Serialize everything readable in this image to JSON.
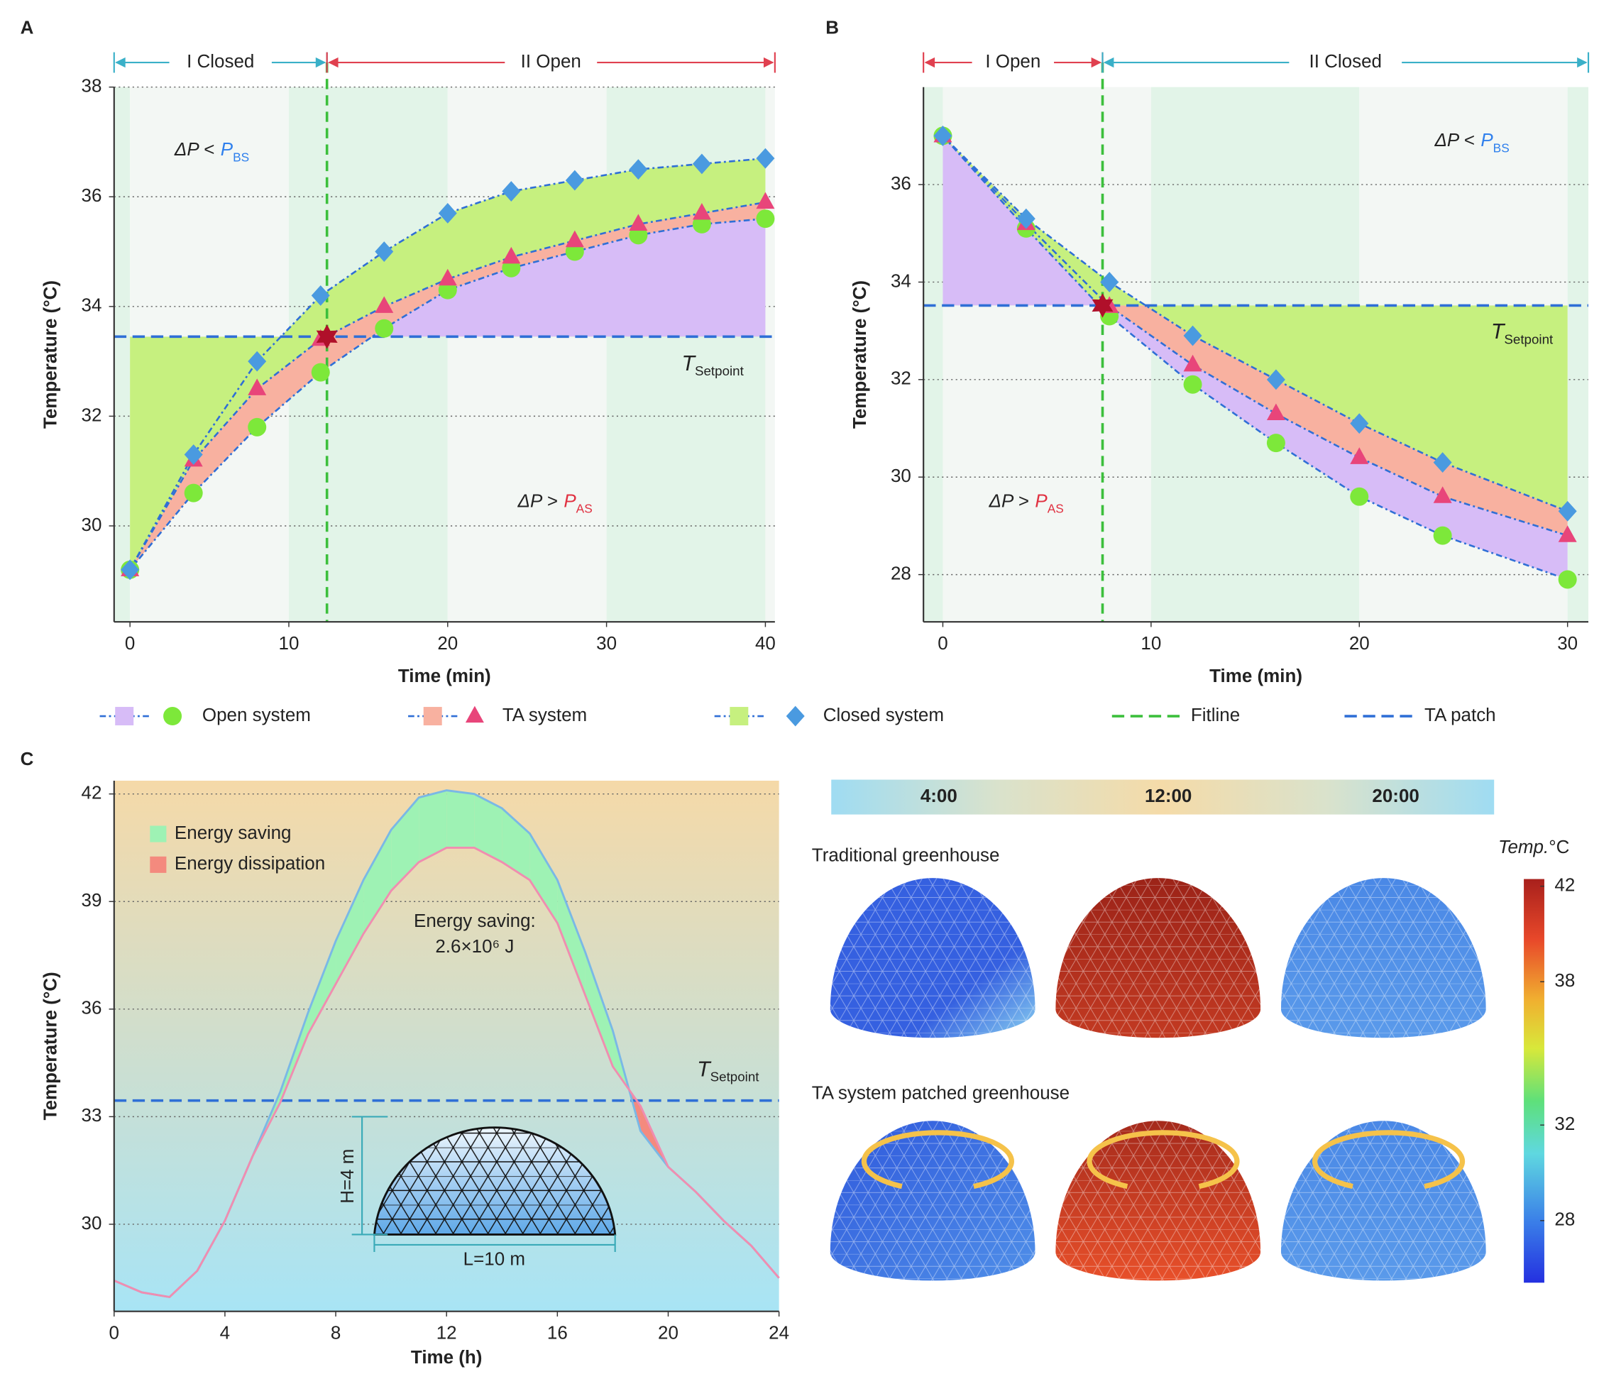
{
  "panels": [
    "A",
    "B",
    "C"
  ],
  "chart_data": [
    {
      "type": "line",
      "x_label": "Time (min)",
      "y_label": "Temperature (°C)",
      "x": [
        0,
        4,
        8,
        12,
        16,
        20,
        24,
        28,
        32,
        36,
        40
      ],
      "series": [
        {
          "name": "Open system",
          "color": "#7de83a",
          "marker": "circle",
          "values": [
            29.2,
            30.6,
            31.8,
            32.8,
            33.6,
            34.3,
            34.7,
            35.0,
            35.3,
            35.5,
            35.6
          ]
        },
        {
          "name": "TA system",
          "color": "#e8457a",
          "marker": "triangle",
          "values": [
            29.2,
            31.2,
            32.5,
            33.4,
            34.0,
            34.5,
            34.9,
            35.2,
            35.5,
            35.7,
            35.9
          ]
        },
        {
          "name": "Closed system",
          "color": "#4a9ae0",
          "marker": "diamond",
          "values": [
            29.2,
            31.3,
            33.0,
            34.2,
            35.0,
            35.7,
            36.1,
            36.3,
            36.5,
            36.6,
            36.7
          ]
        }
      ],
      "line_color": "#2f6fd6",
      "xlim": [
        -1,
        40.6
      ],
      "ylim": [
        28.25,
        38
      ],
      "xticks": [
        0,
        10,
        20,
        30,
        40
      ],
      "yticks": [
        30,
        32,
        34,
        36,
        38
      ],
      "grid": true,
      "bands": [
        "#e2f4e8",
        "#f3f7f4"
      ],
      "setpoint": 33.45,
      "setpoint_color": "#2f6fd6",
      "setpoint_label": [
        "T",
        "Setpoint"
      ],
      "fitline_x": 12.4,
      "fitline_color": "#3cbf3c",
      "crossing": [
        12.4,
        33.45
      ],
      "phases": [
        {
          "label": "I Closed",
          "color": "#3ab0c8",
          "range": [
            -1,
            12.4
          ]
        },
        {
          "label": "II Open",
          "color": "#e0404f",
          "range": [
            12.4,
            40.6
          ]
        }
      ],
      "annotations": [
        {
          "parts": [
            "ΔP <",
            "P",
            "BS"
          ],
          "color": "#2f80ed"
        },
        {
          "parts": [
            "ΔP >",
            "P",
            "AS"
          ],
          "color": "#e03040"
        }
      ],
      "fills": [
        {
          "a": 2,
          "b": 1,
          "color": "#c6f07f"
        },
        {
          "a": 1,
          "b": 0,
          "color": "#f8b1a0"
        },
        {
          "a": 0,
          "b": "setpoint",
          "side": "above",
          "color": "#d7bcf7"
        },
        {
          "a": 2,
          "b": "setpoint",
          "side": "below",
          "color": "#c6f07f"
        }
      ]
    },
    {
      "type": "line",
      "x_label": "Time (min)",
      "y_label": "Temperature (°C)",
      "x": [
        0,
        4,
        8,
        12,
        16,
        20,
        24,
        30
      ],
      "series": [
        {
          "name": "Open system",
          "color": "#7de83a",
          "marker": "circle",
          "values": [
            37.0,
            35.1,
            33.3,
            31.9,
            30.7,
            29.6,
            28.8,
            27.9
          ]
        },
        {
          "name": "TA system",
          "color": "#e8457a",
          "marker": "triangle",
          "values": [
            37.0,
            35.2,
            33.5,
            32.3,
            31.3,
            30.4,
            29.6,
            28.8
          ]
        },
        {
          "name": "Closed system",
          "color": "#4a9ae0",
          "marker": "diamond",
          "values": [
            37.0,
            35.3,
            34.0,
            32.9,
            32.0,
            31.1,
            30.3,
            29.3
          ]
        }
      ],
      "line_color": "#2f6fd6",
      "xlim": [
        -0.93,
        31
      ],
      "ylim": [
        27.03,
        38
      ],
      "xticks": [
        0,
        10,
        20,
        30
      ],
      "yticks": [
        28,
        30,
        32,
        34,
        36
      ],
      "grid": true,
      "bands": [
        "#e2f4e8",
        "#f3f7f4"
      ],
      "setpoint": 33.52,
      "setpoint_color": "#2f6fd6",
      "setpoint_label": [
        "T",
        "Setpoint"
      ],
      "fitline_x": 7.67,
      "fitline_color": "#3cbf3c",
      "crossing": [
        7.67,
        33.52
      ],
      "phases": [
        {
          "label": "I Open",
          "color": "#e0404f",
          "range": [
            -0.93,
            7.67
          ]
        },
        {
          "label": "II Closed",
          "color": "#3ab0c8",
          "range": [
            7.67,
            31
          ]
        }
      ],
      "annotations": [
        {
          "parts": [
            "ΔP <",
            "P",
            "BS"
          ],
          "color": "#2f80ed"
        },
        {
          "parts": [
            "ΔP >",
            "P",
            "AS"
          ],
          "color": "#e03040"
        }
      ],
      "fills": [
        {
          "a": "setpoint",
          "b": 2,
          "side": "below",
          "color": "#c6f07f"
        },
        {
          "a": 2,
          "b": 1,
          "side": "below",
          "color": "#f8b1a0"
        },
        {
          "a": 1,
          "b": 0,
          "side": "below",
          "color": "#d7bcf7"
        },
        {
          "a": 0,
          "b": "setpoint",
          "side": "above",
          "color": "#d7bcf7"
        },
        {
          "a": 2,
          "b": 0,
          "side": "above",
          "color": "#c6f07f"
        }
      ]
    },
    {
      "type": "line",
      "x_label": "Time (h)",
      "y_label": "Temperature (°C)",
      "x": [
        0,
        1,
        2,
        3,
        4,
        5,
        6,
        7,
        8,
        9,
        10,
        11,
        12,
        13,
        14,
        15,
        16,
        17,
        18,
        19,
        20,
        21,
        22,
        23,
        24
      ],
      "series": [
        {
          "color": "#7ab8e6",
          "values": [
            28.43,
            28.1,
            27.97,
            28.7,
            30.1,
            31.9,
            33.7,
            35.9,
            37.9,
            39.6,
            41.0,
            41.9,
            42.1,
            42.0,
            41.6,
            40.9,
            39.6,
            37.6,
            35.4,
            32.6,
            31.6,
            30.9,
            30.1,
            29.4,
            28.5
          ]
        },
        {
          "color": "#f08db0",
          "values": [
            28.43,
            28.1,
            27.97,
            28.7,
            30.1,
            31.9,
            33.4,
            35.3,
            36.7,
            38.1,
            39.3,
            40.1,
            40.5,
            40.5,
            40.1,
            39.6,
            38.4,
            36.4,
            34.4,
            33.3,
            31.6,
            30.9,
            30.1,
            29.4,
            28.5
          ]
        }
      ],
      "xlim": [
        0,
        24
      ],
      "ylim": [
        27.57,
        42.37
      ],
      "xticks": [
        0,
        4,
        8,
        12,
        16,
        20,
        24
      ],
      "yticks": [
        30,
        33,
        36,
        39,
        42
      ],
      "grid": true,
      "background": [
        "#f5d9a8",
        "#a8e4f5"
      ],
      "setpoint": 33.45,
      "setpoint_color": "#2f6fd6",
      "setpoint_label": [
        "T",
        "Setpoint"
      ],
      "fill_between": [
        0,
        1
      ],
      "fills": [
        {
          "name": "Energy saving",
          "color": "#9ef2b4"
        },
        {
          "name": "Energy dissipation",
          "color": "#f48a7e"
        }
      ],
      "annotations": [
        {
          "text": "Energy saving:"
        },
        {
          "text": "2.6×10⁶ J"
        }
      ],
      "inset": {
        "height": "H=4 m",
        "length": "L=10 m"
      }
    }
  ],
  "legend": [
    {
      "name": "Open system",
      "swatch": "#d7bcf7",
      "marker": "circle",
      "color": "#7de83a"
    },
    {
      "name": "TA system",
      "swatch": "#f8b1a0",
      "marker": "triangle",
      "color": "#e8457a"
    },
    {
      "name": "Closed system",
      "swatch": "#c6f07f",
      "marker": "diamond",
      "color": "#4a9ae0"
    },
    {
      "name": "Fitline",
      "line": "#3cbf3c"
    },
    {
      "name": "TA patch",
      "line": "#2f6fd6"
    }
  ],
  "heatmap": {
    "times": [
      "4:00",
      "12:00",
      "20:00"
    ],
    "rows": [
      "Traditional greenhouse",
      "TA system patched greenhouse"
    ],
    "colorbar_title": [
      "Temp.",
      "°C"
    ],
    "lim": [
      25.4,
      42.3
    ],
    "ticks": [
      28,
      32,
      38,
      42
    ]
  }
}
